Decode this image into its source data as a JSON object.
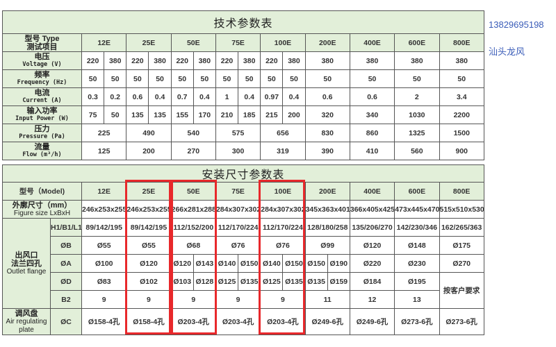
{
  "side": {
    "phone": "13829695198",
    "company": "汕头龙风"
  },
  "tech": {
    "title": "技术参数表",
    "header_cn": "型号 Type",
    "header_cn2": "测试项目",
    "models": [
      "12E",
      "25E",
      "50E",
      "75E",
      "100E",
      "200E",
      "400E",
      "600E",
      "800E"
    ],
    "rows": [
      {
        "cn": "电压",
        "en": "Voltage (V)",
        "cells": [
          [
            "220",
            "380"
          ],
          [
            "220",
            "380"
          ],
          [
            "220",
            "380"
          ],
          [
            "220",
            "380"
          ],
          [
            "220",
            "380"
          ],
          "380",
          "380",
          "380",
          "380"
        ]
      },
      {
        "cn": "频率",
        "en": "Frequency (Hz)",
        "cells": [
          [
            "50",
            "50"
          ],
          [
            "50",
            "50"
          ],
          [
            "50",
            "50"
          ],
          [
            "50",
            "50"
          ],
          [
            "50",
            "50"
          ],
          "50",
          "50",
          "50",
          "50"
        ]
      },
      {
        "cn": "电流",
        "en": "Current (A)",
        "cells": [
          [
            "0.3",
            "0.2"
          ],
          [
            "0.6",
            "0.4"
          ],
          [
            "0.7",
            "0.4"
          ],
          [
            "1",
            "0.4"
          ],
          [
            "0.97",
            "0.4"
          ],
          "0.6",
          "0.6",
          "2",
          "3.4"
        ]
      },
      {
        "cn": "输入功率",
        "en": "Input Power (W)",
        "cells": [
          [
            "75",
            "50"
          ],
          [
            "135",
            "135"
          ],
          [
            "155",
            "170"
          ],
          [
            "210",
            "185"
          ],
          [
            "215",
            "200"
          ],
          "320",
          "340",
          "1030",
          "2200"
        ]
      },
      {
        "cn": "压力",
        "en": "Pressure (Pa)",
        "cells": [
          "225",
          "490",
          "540",
          "575",
          "656",
          "830",
          "860",
          "1325",
          "1500"
        ]
      },
      {
        "cn": "流量",
        "en": "Flow (m³/h)",
        "cells": [
          "125",
          "200",
          "270",
          "300",
          "319",
          "390",
          "410",
          "560",
          "900"
        ]
      }
    ]
  },
  "install": {
    "title": "安装尺寸参数表",
    "header": "型号（Model)",
    "models": [
      "12E",
      "25E",
      "50E",
      "75E",
      "100E",
      "200E",
      "400E",
      "600E",
      "800E"
    ],
    "size_cn": "外廓尺寸（mm）",
    "size_en": "Figure size LxBxH",
    "size_cells": [
      "246x253x255",
      "246x253x255",
      "266x281x288",
      "284x307x302",
      "284x307x302",
      "345x363x401",
      "366x405x425",
      "473x445x470",
      "515x510x530"
    ],
    "outlet_label": [
      "出风口",
      "法兰四孔",
      "Outlet flange"
    ],
    "outlet_rows": [
      {
        "sub": "H1/B1/L1",
        "cells": [
          "89/142/195",
          "89/142/195",
          "112/152/200",
          "112/170/224",
          "112/170/224",
          "128/180/258",
          "135/206/270",
          "142/230/346",
          "162/265/363"
        ]
      },
      {
        "sub": "ØB",
        "cells": [
          "Ø55",
          "Ø55",
          "Ø68",
          "Ø76",
          "Ø76",
          "Ø99",
          "Ø120",
          "Ø148",
          "Ø175"
        ]
      },
      {
        "sub": "ØA",
        "cells": [
          "Ø100",
          "Ø120",
          [
            "Ø120",
            "Ø143"
          ],
          [
            "Ø140",
            "Ø150"
          ],
          [
            "Ø140",
            "Ø150"
          ],
          [
            "Ø150",
            "Ø190"
          ],
          "Ø220",
          "Ø230",
          "Ø270"
        ]
      },
      {
        "sub": "ØD",
        "cells": [
          "Ø83",
          "Ø102",
          [
            "Ø103",
            "Ø128"
          ],
          [
            "Ø125",
            "Ø135"
          ],
          [
            "Ø125",
            "Ø135"
          ],
          [
            "Ø135",
            "Ø159"
          ],
          "Ø184",
          "Ø195",
          {
            "text": "按客户要求",
            "rows": 2
          }
        ]
      },
      {
        "sub": "B2",
        "cells": [
          "9",
          "9",
          "9",
          "9",
          "9",
          "11",
          "12",
          "13"
        ]
      }
    ],
    "plate_label": [
      "调风盘",
      "Air regulating",
      "plate"
    ],
    "plate_sub": "ØC",
    "plate_cells": [
      "Ø158-4孔",
      "Ø158-4孔",
      "Ø203-4孔",
      "Ø203-4孔",
      "Ø203-4孔",
      "Ø249-6孔",
      "Ø249-6孔",
      "Ø273-6孔",
      "Ø273-6孔"
    ]
  },
  "highlight": {
    "color": "#e8282b",
    "models": [
      "25E",
      "50E",
      "100E"
    ]
  }
}
